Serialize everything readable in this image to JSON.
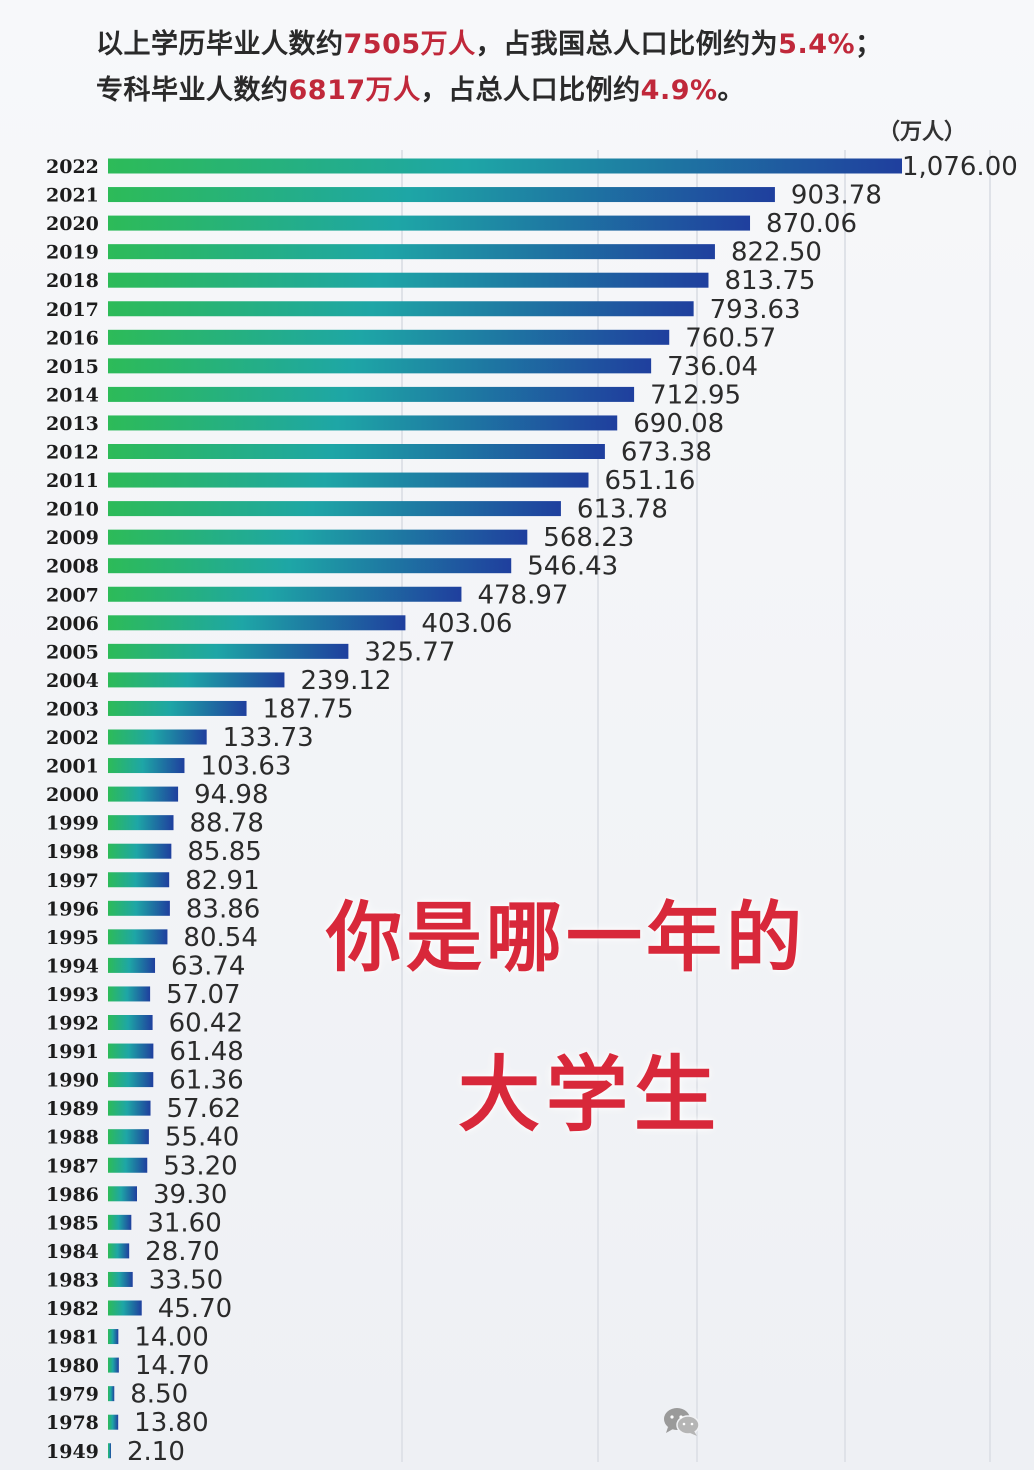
{
  "header": {
    "line1": {
      "pre": "以上学历毕业人数约",
      "hl1": "7505万人",
      "mid": "，占我国总人口比例约为",
      "hl2": "5.4%",
      "post": "；"
    },
    "line2": {
      "pre": "专科毕业人数约",
      "hl1": "6817万人",
      "mid": "，占总人口比例约",
      "hl2": "4.9%",
      "post": "。"
    },
    "unit": "（万人）"
  },
  "overlay": {
    "line1": "你是哪一年的",
    "line2": "大学生"
  },
  "icons": {
    "watermark": "wechat-icon"
  },
  "colors": {
    "bar_start": "#2dbb58",
    "bar_mid": "#1ea6a6",
    "bar_end": "#1f3f9e",
    "highlight_red": "#c0283a",
    "overlay_red": "#d8283a"
  },
  "chart_data": {
    "type": "bar",
    "orientation": "horizontal",
    "unit": "万人",
    "categories": [
      "2022",
      "2021",
      "2020",
      "2019",
      "2018",
      "2017",
      "2016",
      "2015",
      "2014",
      "2013",
      "2012",
      "2011",
      "2010",
      "2009",
      "2008",
      "2007",
      "2006",
      "2005",
      "2004",
      "2003",
      "2002",
      "2001",
      "2000",
      "1999",
      "1998",
      "1997",
      "1996",
      "1995",
      "1994",
      "1993",
      "1992",
      "1991",
      "1990",
      "1989",
      "1988",
      "1987",
      "1986",
      "1985",
      "1984",
      "1983",
      "1982",
      "1981",
      "1980",
      "1979",
      "1978",
      "1949"
    ],
    "values": [
      1076.0,
      903.78,
      870.06,
      822.5,
      813.75,
      793.63,
      760.57,
      736.04,
      712.95,
      690.08,
      673.38,
      651.16,
      613.78,
      568.23,
      546.43,
      478.97,
      403.06,
      325.77,
      239.12,
      187.75,
      133.73,
      103.63,
      94.98,
      88.78,
      85.85,
      82.91,
      83.86,
      80.54,
      63.74,
      57.07,
      60.42,
      61.48,
      61.36,
      57.62,
      55.4,
      53.2,
      39.3,
      31.6,
      28.7,
      33.5,
      45.7,
      14.0,
      14.7,
      8.5,
      13.8,
      2.1
    ],
    "value_labels": [
      "1,076.00",
      "903.78",
      "870.06",
      "822.50",
      "813.75",
      "793.63",
      "760.57",
      "736.04",
      "712.95",
      "690.08",
      "673.38",
      "651.16",
      "613.78",
      "568.23",
      "546.43",
      "478.97",
      "403.06",
      "325.77",
      "239.12",
      "187.75",
      "133.73",
      "103.63",
      "94.98",
      "88.78",
      "85.85",
      "82.91",
      "83.86",
      "80.54",
      "63.74",
      "57.07",
      "60.42",
      "61.48",
      "61.36",
      "57.62",
      "55.40",
      "53.20",
      "39.30",
      "31.60",
      "28.70",
      "33.50",
      "45.70",
      "14.00",
      "14.70",
      "8.50",
      "13.80",
      "2.10"
    ],
    "xlim": [
      0,
      1076
    ],
    "grid": true,
    "legend": "none"
  }
}
